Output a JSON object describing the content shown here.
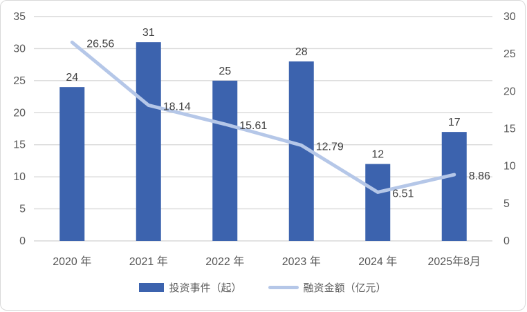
{
  "chart_data": {
    "type": "bar",
    "subtype": "combo-bar-line",
    "categories": [
      "2020 年",
      "2021 年",
      "2022 年",
      "2023 年",
      "2024 年",
      "2025年8月"
    ],
    "series": [
      {
        "name": "投资事件（起）",
        "type": "bar",
        "axis": "left",
        "values": [
          24,
          31,
          25,
          28,
          12,
          17
        ],
        "color": "#3c63ae"
      },
      {
        "name": "融资金额（亿元）",
        "type": "line",
        "axis": "right",
        "values": [
          26.56,
          18.14,
          15.61,
          12.79,
          6.51,
          8.86
        ],
        "color": "#b5c7e8"
      }
    ],
    "title": "",
    "xlabel": "",
    "ylabel_left": "",
    "ylabel_right": "",
    "left_axis": {
      "min": 0,
      "max": 35,
      "step": 5,
      "ticks": [
        0,
        5,
        10,
        15,
        20,
        25,
        30,
        35
      ]
    },
    "right_axis": {
      "min": 0,
      "max": 30,
      "step": 5,
      "ticks": [
        0,
        5,
        10,
        15,
        20,
        25,
        30
      ]
    },
    "grid": true,
    "legend_position": "bottom",
    "data_labels": true
  },
  "style": {
    "grid_color": "#d9d9d9",
    "tick_text_color": "#595959",
    "data_label_color": "#404040",
    "category_text_color": "#595959"
  }
}
